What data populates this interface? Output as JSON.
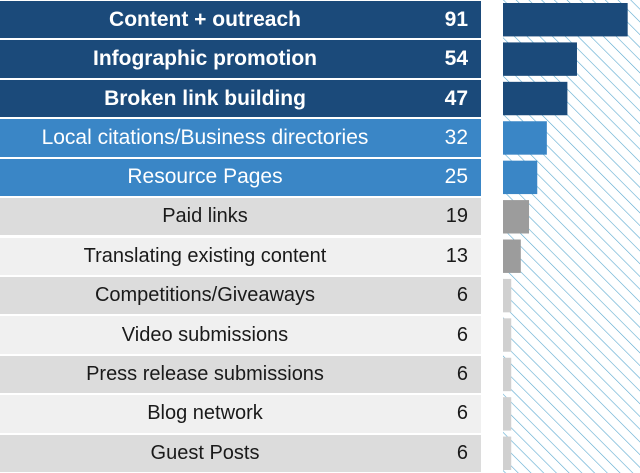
{
  "chart_data": {
    "type": "bar",
    "orientation": "horizontal",
    "categories": [
      "Content + outreach",
      "Infographic promotion",
      "Broken link building",
      "Local citations/Business directories",
      "Resource Pages",
      "Paid links",
      "Translating existing content",
      "Competitions/Giveaways",
      "Video submissions",
      "Press release submissions",
      "Blog network",
      "Guest Posts"
    ],
    "values": [
      91,
      54,
      47,
      32,
      25,
      19,
      13,
      6,
      6,
      6,
      6,
      6
    ],
    "xlim": [
      0,
      100
    ],
    "grid": false,
    "colors": {
      "top": "#1b4a7a",
      "mid": "#3a86c6",
      "low_bar": "#9c9c9c",
      "small_bar": "#d0d0d0",
      "hatch": "#5aa9cf"
    }
  }
}
